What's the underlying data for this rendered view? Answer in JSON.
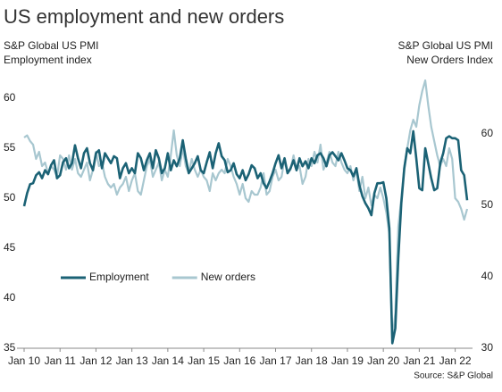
{
  "chart_data": {
    "type": "line",
    "title": "US employment and new orders",
    "y_label": [
      "S&P Global US PMI",
      "Employment index"
    ],
    "y2_label": [
      "S&P Global US PMI",
      "New Orders Index"
    ],
    "source": "Source: S&P Global",
    "legend": "center-left",
    "xlim": [
      "2010-01",
      "2022-05"
    ],
    "xticks": [
      {
        "value": "2010-01",
        "label": "Jan 10"
      },
      {
        "value": "2011-01",
        "label": "Jan 11"
      },
      {
        "value": "2012-01",
        "label": "Jan 12"
      },
      {
        "value": "2013-01",
        "label": "Jan 13"
      },
      {
        "value": "2014-01",
        "label": "Jan 14"
      },
      {
        "value": "2015-01",
        "label": "Jan 15"
      },
      {
        "value": "2016-01",
        "label": "Jan 16"
      },
      {
        "value": "2017-01",
        "label": "Jan 17"
      },
      {
        "value": "2018-01",
        "label": "Jan 18"
      },
      {
        "value": "2019-01",
        "label": "Jan 19"
      },
      {
        "value": "2020-01",
        "label": "Jan 20"
      },
      {
        "value": "2021-01",
        "label": "Jan 21"
      },
      {
        "value": "2022-01",
        "label": "Jan 22"
      }
    ],
    "ylim": [
      35,
      62
    ],
    "yticks": [
      35,
      40,
      45,
      50,
      55,
      60
    ],
    "y2lim": [
      30,
      67.8
    ],
    "y2ticks": [
      30,
      40,
      50,
      60
    ],
    "x": [
      "2010-01",
      "2010-02",
      "2010-03",
      "2010-04",
      "2010-05",
      "2010-06",
      "2010-07",
      "2010-08",
      "2010-09",
      "2010-10",
      "2010-11",
      "2010-12",
      "2011-01",
      "2011-02",
      "2011-03",
      "2011-04",
      "2011-05",
      "2011-06",
      "2011-07",
      "2011-08",
      "2011-09",
      "2011-10",
      "2011-11",
      "2011-12",
      "2012-01",
      "2012-02",
      "2012-03",
      "2012-04",
      "2012-05",
      "2012-06",
      "2012-07",
      "2012-08",
      "2012-09",
      "2012-10",
      "2012-11",
      "2012-12",
      "2013-01",
      "2013-02",
      "2013-03",
      "2013-04",
      "2013-05",
      "2013-06",
      "2013-07",
      "2013-08",
      "2013-09",
      "2013-10",
      "2013-11",
      "2013-12",
      "2014-01",
      "2014-02",
      "2014-03",
      "2014-04",
      "2014-05",
      "2014-06",
      "2014-07",
      "2014-08",
      "2014-09",
      "2014-10",
      "2014-11",
      "2014-12",
      "2015-01",
      "2015-02",
      "2015-03",
      "2015-04",
      "2015-05",
      "2015-06",
      "2015-07",
      "2015-08",
      "2015-09",
      "2015-10",
      "2015-11",
      "2015-12",
      "2016-01",
      "2016-02",
      "2016-03",
      "2016-04",
      "2016-05",
      "2016-06",
      "2016-07",
      "2016-08",
      "2016-09",
      "2016-10",
      "2016-11",
      "2016-12",
      "2017-01",
      "2017-02",
      "2017-03",
      "2017-04",
      "2017-05",
      "2017-06",
      "2017-07",
      "2017-08",
      "2017-09",
      "2017-10",
      "2017-11",
      "2017-12",
      "2018-01",
      "2018-02",
      "2018-03",
      "2018-04",
      "2018-05",
      "2018-06",
      "2018-07",
      "2018-08",
      "2018-09",
      "2018-10",
      "2018-11",
      "2018-12",
      "2019-01",
      "2019-02",
      "2019-03",
      "2019-04",
      "2019-05",
      "2019-06",
      "2019-07",
      "2019-08",
      "2019-09",
      "2019-10",
      "2019-11",
      "2019-12",
      "2020-01",
      "2020-02",
      "2020-03",
      "2020-04",
      "2020-05",
      "2020-06",
      "2020-07",
      "2020-08",
      "2020-09",
      "2020-10",
      "2020-11",
      "2020-12",
      "2021-01",
      "2021-02",
      "2021-03",
      "2021-04",
      "2021-05",
      "2021-06",
      "2021-07",
      "2021-08",
      "2021-09",
      "2021-10",
      "2021-11",
      "2021-12",
      "2022-01",
      "2022-02",
      "2022-03",
      "2022-04",
      "2022-05"
    ],
    "series": [
      {
        "name": "New orders",
        "color": "#a8c7d0",
        "axis": "y2",
        "values": [
          59.5,
          59.8,
          59.0,
          58.5,
          56.5,
          57.5,
          55.5,
          56.0,
          54.5,
          55.5,
          55.0,
          54.0,
          57.0,
          56.5,
          55.0,
          57.0,
          55.0,
          56.5,
          54.5,
          54.0,
          55.0,
          56.0,
          53.5,
          55.0,
          57.5,
          55.5,
          56.0,
          54.0,
          53.0,
          52.5,
          53.0,
          51.5,
          52.5,
          53.0,
          54.0,
          52.0,
          53.5,
          54.5,
          52.0,
          51.5,
          53.5,
          55.5,
          56.5,
          54.0,
          55.0,
          56.0,
          53.5,
          55.0,
          54.0,
          57.0,
          60.5,
          57.0,
          55.5,
          58.0,
          55.5,
          54.5,
          56.5,
          55.0,
          54.0,
          55.0,
          54.0,
          53.5,
          52.0,
          54.5,
          53.5,
          54.5,
          55.0,
          54.5,
          56.5,
          55.5,
          54.0,
          53.0,
          51.5,
          53.0,
          51.0,
          50.5,
          52.0,
          51.5,
          51.5,
          52.5,
          54.5,
          51.5,
          52.0,
          54.0,
          55.0,
          53.5,
          54.0,
          56.5,
          54.5,
          55.0,
          57.0,
          55.0,
          55.5,
          53.0,
          54.0,
          56.5,
          55.5,
          57.5,
          56.0,
          58.5,
          55.0,
          56.0,
          57.5,
          56.0,
          55.5,
          57.5,
          56.0,
          55.0,
          54.5,
          55.5,
          53.5,
          55.0,
          52.0,
          54.0,
          51.0,
          52.5,
          50.0,
          51.5,
          51.0,
          52.5,
          51.0,
          49.0,
          46.0,
          31.0,
          35.0,
          47.0,
          51.0,
          55.5,
          58.0,
          60.5,
          62.0,
          61.0,
          64.0,
          66.0,
          67.5,
          64.0,
          61.0,
          59.0,
          57.0,
          55.5,
          56.5,
          55.5,
          58.0,
          56.5,
          51.0,
          50.5,
          49.5,
          48.0,
          49.5
        ]
      },
      {
        "name": "Employment",
        "color": "#1b6275",
        "values": [
          49.2,
          50.5,
          51.4,
          51.5,
          52.3,
          52.6,
          52.0,
          52.8,
          52.4,
          53.3,
          53.8,
          52.0,
          52.3,
          53.6,
          54.0,
          53.0,
          53.5,
          55.3,
          54.0,
          53.0,
          54.5,
          55.0,
          53.5,
          52.8,
          54.5,
          54.8,
          53.0,
          54.5,
          54.0,
          53.5,
          54.2,
          54.0,
          52.0,
          53.0,
          53.5,
          52.5,
          53.0,
          52.5,
          54.5,
          54.0,
          52.8,
          53.8,
          54.5,
          53.0,
          54.8,
          54.0,
          52.5,
          53.0,
          54.5,
          52.8,
          53.8,
          53.2,
          54.0,
          55.8,
          54.0,
          52.5,
          53.0,
          53.5,
          54.2,
          52.8,
          52.5,
          53.6,
          54.6,
          53.0,
          54.5,
          55.5,
          54.2,
          53.8,
          52.6,
          52.8,
          53.5,
          52.4,
          52.0,
          52.8,
          51.8,
          52.4,
          53.3,
          53.0,
          52.0,
          52.5,
          51.5,
          51.0,
          51.7,
          52.5,
          53.5,
          54.3,
          53.0,
          54.0,
          52.5,
          53.0,
          53.8,
          52.8,
          54.0,
          53.2,
          53.7,
          53.0,
          54.0,
          53.5,
          54.3,
          54.5,
          54.0,
          53.2,
          54.3,
          54.6,
          54.2,
          53.8,
          54.5,
          53.8,
          53.0,
          52.8,
          52.2,
          53.0,
          51.3,
          50.2,
          49.5,
          49.0,
          48.3,
          50.5,
          51.5,
          51.5,
          51.6,
          50.0,
          47.0,
          35.5,
          37.0,
          44.0,
          49.5,
          53.0,
          55.0,
          54.5,
          56.7,
          54.0,
          51.0,
          50.8,
          55.0,
          53.5,
          52.0,
          50.8,
          51.0,
          53.5,
          54.5,
          56.0,
          56.2,
          56.0,
          56.0,
          55.8,
          52.8,
          52.3,
          49.8
        ]
      }
    ]
  }
}
